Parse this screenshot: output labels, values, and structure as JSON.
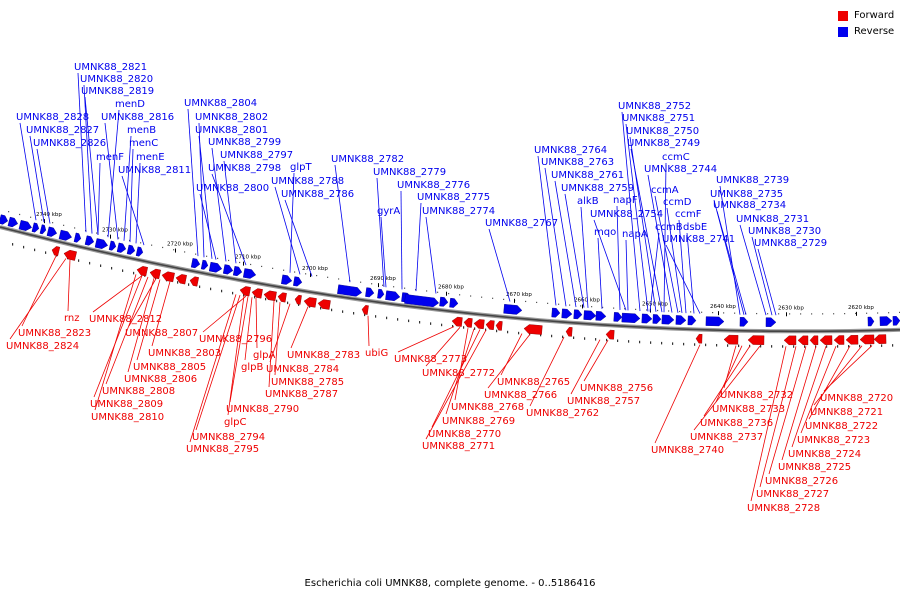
{
  "legend": {
    "forward_label": "Forward",
    "reverse_label": "Reverse",
    "forward_color": "#ee0000",
    "reverse_color": "#0000ee"
  },
  "caption": "Escherichia coli UMNK88, complete genome. - 0..5186416",
  "kbp_ticks": [
    "2740 kbp",
    "2730 kbp",
    "2720 kbp",
    "2710 kbp",
    "2700 kbp",
    "2690 kbp",
    "2680 kbp",
    "2670 kbp",
    "2660 kbp",
    "2650 kbp",
    "2640 kbp",
    "2630 kbp",
    "2620 kbp"
  ],
  "reverse_genes": [
    "UMNK88_2821",
    "UMNK88_2820",
    "UMNK88_2819",
    "menD",
    "UMNK88_2828",
    "UMNK88_2827",
    "UMNK88_2816",
    "menB",
    "UMNK88_2826",
    "menC",
    "menF",
    "menE",
    "UMNK88_2811",
    "UMNK88_2804",
    "UMNK88_2802",
    "UMNK88_2801",
    "UMNK88_2799",
    "UMNK88_2797",
    "UMNK88_2798",
    "glpT",
    "UMNK88_2788",
    "UMNK88_2800",
    "UMNK88_2786",
    "UMNK88_2782",
    "UMNK88_2779",
    "UMNK88_2776",
    "UMNK88_2775",
    "UMNK88_2774",
    "gyrA",
    "UMNK88_2767",
    "UMNK88_2764",
    "UMNK88_2763",
    "UMNK88_2761",
    "UMNK88_2759",
    "alkB",
    "napF",
    "UMNK88_2754",
    "mqo",
    "napA",
    "UMNK88_2752",
    "UMNK88_2751",
    "UMNK88_2750",
    "UMNK88_2749",
    "ccmC",
    "UMNK88_2744",
    "ccmA",
    "ccmD",
    "ccmB",
    "ccmF",
    "dsbE",
    "UMNK88_2741",
    "UMNK88_2739",
    "UMNK88_2735",
    "UMNK88_2734",
    "UMNK88_2731",
    "UMNK88_2730",
    "UMNK88_2729"
  ],
  "forward_genes": [
    "rnz",
    "UMNK88_2823",
    "UMNK88_2824",
    "UMNK88_2812",
    "UMNK88_2807",
    "UMNK88_2803",
    "UMNK88_2805",
    "UMNK88_2806",
    "UMNK88_2808",
    "UMNK88_2809",
    "UMNK88_2810",
    "UMNK88_2796",
    "glpA",
    "glpB",
    "UMNK88_2784",
    "UMNK88_2783",
    "UMNK88_2785",
    "UMNK88_2787",
    "UMNK88_2790",
    "glpC",
    "UMNK88_2794",
    "UMNK88_2795",
    "ubiG",
    "UMNK88_2773",
    "UMNK88_2772",
    "UMNK88_2765",
    "UMNK88_2766",
    "UMNK88_2768",
    "UMNK88_2769",
    "UMNK88_2770",
    "UMNK88_2771",
    "UMNK88_2756",
    "UMNK88_2757",
    "UMNK88_2762",
    "UMNK88_2740",
    "UMNK88_2732",
    "UMNK88_2733",
    "UMNK88_2736",
    "UMNK88_2737",
    "UMNK88_2720",
    "UMNK88_2721",
    "UMNK88_2722",
    "UMNK88_2723",
    "UMNK88_2724",
    "UMNK88_2725",
    "UMNK88_2726",
    "UMNK88_2727",
    "UMNK88_2728"
  ]
}
